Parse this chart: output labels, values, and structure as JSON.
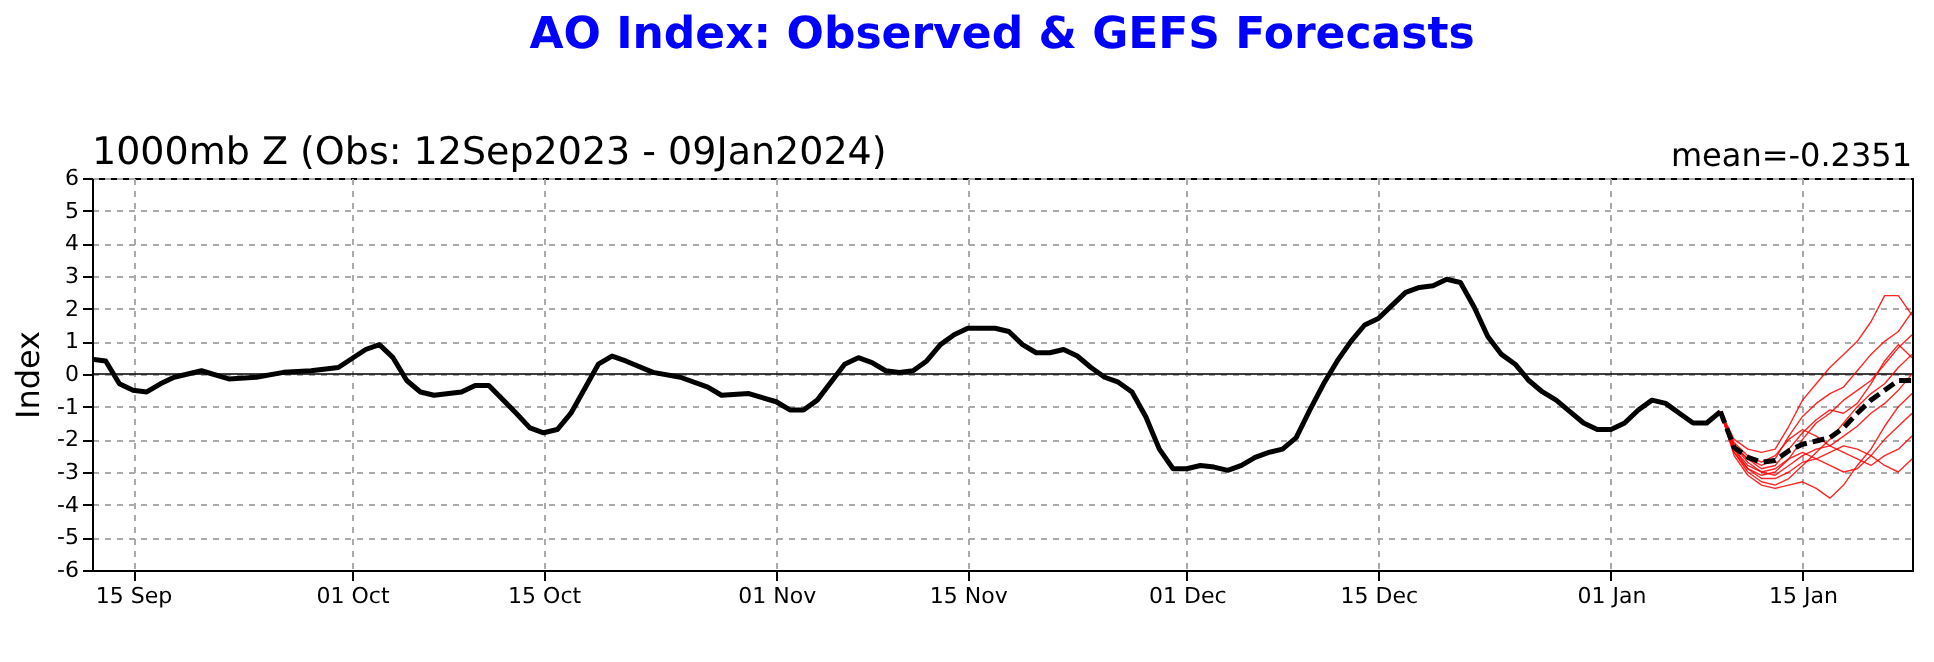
{
  "chart_data": {
    "type": "line",
    "title": "AO Index: Observed & GEFS Forecasts",
    "subtitle": "1000mb Z (Obs: 12Sep2023 - 09Jan2024)",
    "ylabel": "Index",
    "annotations": [
      "mean=-0.2351"
    ],
    "xlim": [
      "2023-09-12",
      "2024-01-23"
    ],
    "xticks": [
      {
        "value": "2023-09-15",
        "label": "15 Sep"
      },
      {
        "value": "2023-10-01",
        "label": "01 Oct"
      },
      {
        "value": "2023-10-15",
        "label": "15 Oct"
      },
      {
        "value": "2023-11-01",
        "label": "01 Nov"
      },
      {
        "value": "2023-11-15",
        "label": "15 Nov"
      },
      {
        "value": "2023-12-01",
        "label": "01 Dec"
      },
      {
        "value": "2023-12-15",
        "label": "15 Dec"
      },
      {
        "value": "2024-01-01",
        "label": "01 Jan"
      },
      {
        "value": "2024-01-15",
        "label": "15 Jan"
      }
    ],
    "ylim": [
      -6,
      6
    ],
    "yticks": [
      -6,
      -5,
      -4,
      -3,
      -2,
      -1,
      0,
      1,
      2,
      3,
      4,
      5,
      6
    ],
    "grid": true,
    "marker": "none",
    "ref_lines": [
      {
        "axis": "y",
        "value": 0,
        "color": "#000000",
        "line_style": "solid"
      }
    ],
    "series": [
      {
        "color": "#000000",
        "line_style": "solid",
        "x": [
          "2023-09-12",
          "2023-09-13",
          "2023-09-14",
          "2023-09-15",
          "2023-09-16",
          "2023-09-17",
          "2023-09-18",
          "2023-09-20",
          "2023-09-22",
          "2023-09-24",
          "2023-09-26",
          "2023-09-28",
          "2023-09-30",
          "2023-10-02",
          "2023-10-03",
          "2023-10-04",
          "2023-10-05",
          "2023-10-06",
          "2023-10-07",
          "2023-10-09",
          "2023-10-10",
          "2023-10-11",
          "2023-10-13",
          "2023-10-14",
          "2023-10-15",
          "2023-10-16",
          "2023-10-17",
          "2023-10-19",
          "2023-10-20",
          "2023-10-21",
          "2023-10-23",
          "2023-10-25",
          "2023-10-27",
          "2023-10-28",
          "2023-10-30",
          "2023-11-01",
          "2023-11-02",
          "2023-11-03",
          "2023-11-04",
          "2023-11-06",
          "2023-11-07",
          "2023-11-08",
          "2023-11-09",
          "2023-11-10",
          "2023-11-11",
          "2023-11-12",
          "2023-11-13",
          "2023-11-14",
          "2023-11-15",
          "2023-11-17",
          "2023-11-18",
          "2023-11-19",
          "2023-11-20",
          "2023-11-21",
          "2023-11-22",
          "2023-11-23",
          "2023-11-24",
          "2023-11-25",
          "2023-11-26",
          "2023-11-27",
          "2023-11-28",
          "2023-11-29",
          "2023-11-30",
          "2023-12-01",
          "2023-12-02",
          "2023-12-03",
          "2023-12-04",
          "2023-12-05",
          "2023-12-06",
          "2023-12-07",
          "2023-12-08",
          "2023-12-09",
          "2023-12-10",
          "2023-12-11",
          "2023-12-12",
          "2023-12-13",
          "2023-12-14",
          "2023-12-15",
          "2023-12-16",
          "2023-12-17",
          "2023-12-18",
          "2023-12-19",
          "2023-12-20",
          "2023-12-21",
          "2023-12-22",
          "2023-12-23",
          "2023-12-24",
          "2023-12-25",
          "2023-12-26",
          "2023-12-27",
          "2023-12-28",
          "2023-12-29",
          "2023-12-30",
          "2023-12-31",
          "2024-01-01",
          "2024-01-02",
          "2024-01-03",
          "2024-01-04",
          "2024-01-05",
          "2024-01-06",
          "2024-01-07",
          "2024-01-08",
          "2024-01-09"
        ],
        "values": [
          0.45,
          0.4,
          -0.3,
          -0.5,
          -0.55,
          -0.3,
          -0.1,
          0.1,
          -0.15,
          -0.1,
          0.05,
          0.1,
          0.2,
          0.75,
          0.9,
          0.5,
          -0.2,
          -0.55,
          -0.65,
          -0.55,
          -0.35,
          -0.35,
          -1.2,
          -1.65,
          -1.8,
          -1.7,
          -1.2,
          0.3,
          0.55,
          0.4,
          0.05,
          -0.1,
          -0.4,
          -0.65,
          -0.6,
          -0.85,
          -1.1,
          -1.1,
          -0.8,
          0.3,
          0.5,
          0.35,
          0.1,
          0.05,
          0.1,
          0.4,
          0.9,
          1.2,
          1.4,
          1.4,
          1.3,
          0.9,
          0.65,
          0.65,
          0.75,
          0.55,
          0.2,
          -0.1,
          -0.25,
          -0.55,
          -1.3,
          -2.3,
          -2.9,
          -2.9,
          -2.8,
          -2.85,
          -2.95,
          -2.8,
          -2.55,
          -2.4,
          -2.3,
          -1.95,
          -1.1,
          -0.3,
          0.4,
          1.0,
          1.5,
          1.7,
          2.1,
          2.5,
          2.65,
          2.7,
          2.9,
          2.8,
          2.05,
          1.15,
          0.6,
          0.3,
          -0.2,
          -0.55,
          -0.8,
          -1.15,
          -1.5,
          -1.7,
          -1.7,
          -1.5,
          -1.1,
          -0.8,
          -0.9,
          -1.2,
          -1.5,
          -1.5,
          -1.15
        ]
      },
      {
        "color": "#ff0000",
        "x": [
          "2024-01-09",
          "2024-01-10",
          "2024-01-11",
          "2024-01-12",
          "2024-01-13",
          "2024-01-14",
          "2024-01-15",
          "2024-01-16",
          "2024-01-17",
          "2024-01-18",
          "2024-01-19",
          "2024-01-20",
          "2024-01-21",
          "2024-01-22",
          "2024-01-23"
        ],
        "values": [
          -1.15,
          -2.0,
          -2.3,
          -2.4,
          -2.3,
          -1.6,
          -0.8,
          -0.3,
          0.2,
          0.6,
          1.0,
          1.6,
          2.4,
          2.4,
          1.8
        ]
      },
      {
        "color": "#ff0000",
        "x": [
          "2024-01-09",
          "2024-01-10",
          "2024-01-11",
          "2024-01-12",
          "2024-01-13",
          "2024-01-14",
          "2024-01-15",
          "2024-01-16",
          "2024-01-17",
          "2024-01-18",
          "2024-01-19",
          "2024-01-20",
          "2024-01-21",
          "2024-01-22",
          "2024-01-23"
        ],
        "values": [
          -1.15,
          -2.2,
          -2.6,
          -2.8,
          -2.6,
          -1.9,
          -1.3,
          -0.9,
          -0.6,
          -0.4,
          0.1,
          0.6,
          1.0,
          1.3,
          1.9
        ]
      },
      {
        "color": "#ff0000",
        "x": [
          "2024-01-09",
          "2024-01-10",
          "2024-01-11",
          "2024-01-12",
          "2024-01-13",
          "2024-01-14",
          "2024-01-15",
          "2024-01-16",
          "2024-01-17",
          "2024-01-18",
          "2024-01-19",
          "2024-01-20",
          "2024-01-21",
          "2024-01-22",
          "2024-01-23"
        ],
        "values": [
          -1.15,
          -2.3,
          -2.9,
          -3.1,
          -3.0,
          -2.6,
          -2.0,
          -1.5,
          -1.2,
          -0.8,
          -0.5,
          -0.2,
          0.3,
          0.8,
          1.2
        ]
      },
      {
        "color": "#ff0000",
        "x": [
          "2024-01-09",
          "2024-01-10",
          "2024-01-11",
          "2024-01-12",
          "2024-01-13",
          "2024-01-14",
          "2024-01-15",
          "2024-01-16",
          "2024-01-17",
          "2024-01-18",
          "2024-01-19",
          "2024-01-20",
          "2024-01-21",
          "2024-01-22",
          "2024-01-23"
        ],
        "values": [
          -1.15,
          -2.4,
          -3.0,
          -3.3,
          -3.4,
          -3.2,
          -2.8,
          -2.4,
          -2.0,
          -1.5,
          -1.0,
          -0.6,
          -0.3,
          0.2,
          0.6
        ]
      },
      {
        "color": "#ff0000",
        "x": [
          "2024-01-09",
          "2024-01-10",
          "2024-01-11",
          "2024-01-12",
          "2024-01-13",
          "2024-01-14",
          "2024-01-15",
          "2024-01-16",
          "2024-01-17",
          "2024-01-18",
          "2024-01-19",
          "2024-01-20",
          "2024-01-21",
          "2024-01-22",
          "2024-01-23"
        ],
        "values": [
          -1.15,
          -2.2,
          -2.7,
          -3.0,
          -3.1,
          -2.8,
          -2.5,
          -2.3,
          -2.2,
          -1.9,
          -1.6,
          -1.2,
          -0.9,
          -0.5,
          0.0
        ]
      },
      {
        "color": "#ff0000",
        "x": [
          "2024-01-09",
          "2024-01-10",
          "2024-01-11",
          "2024-01-12",
          "2024-01-13",
          "2024-01-14",
          "2024-01-15",
          "2024-01-16",
          "2024-01-17",
          "2024-01-18",
          "2024-01-19",
          "2024-01-20",
          "2024-01-21",
          "2024-01-22",
          "2024-01-23"
        ],
        "values": [
          -1.15,
          -2.5,
          -3.1,
          -3.4,
          -3.5,
          -3.4,
          -3.3,
          -3.5,
          -3.8,
          -3.4,
          -2.8,
          -2.3,
          -1.6,
          -1.0,
          -0.6
        ]
      },
      {
        "color": "#ff0000",
        "x": [
          "2024-01-09",
          "2024-01-10",
          "2024-01-11",
          "2024-01-12",
          "2024-01-13",
          "2024-01-14",
          "2024-01-15",
          "2024-01-16",
          "2024-01-17",
          "2024-01-18",
          "2024-01-19",
          "2024-01-20",
          "2024-01-21",
          "2024-01-22",
          "2024-01-23"
        ],
        "values": [
          -1.15,
          -2.3,
          -2.8,
          -3.0,
          -2.9,
          -2.6,
          -2.4,
          -2.6,
          -2.8,
          -3.0,
          -2.9,
          -2.5,
          -2.0,
          -1.6,
          -1.2
        ]
      },
      {
        "color": "#ff0000",
        "x": [
          "2024-01-09",
          "2024-01-10",
          "2024-01-11",
          "2024-01-12",
          "2024-01-13",
          "2024-01-14",
          "2024-01-15",
          "2024-01-16",
          "2024-01-17",
          "2024-01-18",
          "2024-01-19",
          "2024-01-20",
          "2024-01-21",
          "2024-01-22",
          "2024-01-23"
        ],
        "values": [
          -1.15,
          -2.1,
          -2.5,
          -2.7,
          -2.5,
          -2.0,
          -1.7,
          -1.9,
          -2.2,
          -2.4,
          -2.6,
          -2.8,
          -2.5,
          -2.3,
          -1.9
        ]
      },
      {
        "color": "#ff0000",
        "x": [
          "2024-01-09",
          "2024-01-10",
          "2024-01-11",
          "2024-01-12",
          "2024-01-13",
          "2024-01-14",
          "2024-01-15",
          "2024-01-16",
          "2024-01-17",
          "2024-01-18",
          "2024-01-19",
          "2024-01-20",
          "2024-01-21",
          "2024-01-22",
          "2024-01-23"
        ],
        "values": [
          -1.15,
          -2.4,
          -2.9,
          -3.2,
          -3.2,
          -3.0,
          -2.7,
          -2.6,
          -2.4,
          -2.2,
          -2.3,
          -2.5,
          -2.8,
          -3.0,
          -2.6
        ]
      },
      {
        "color": "#ff0000",
        "x": [
          "2024-01-09",
          "2024-01-10",
          "2024-01-11",
          "2024-01-12",
          "2024-01-13",
          "2024-01-14",
          "2024-01-15",
          "2024-01-16",
          "2024-01-17",
          "2024-01-18",
          "2024-01-19",
          "2024-01-20",
          "2024-01-21",
          "2024-01-22",
          "2024-01-23"
        ],
        "values": [
          -1.15,
          -2.2,
          -2.6,
          -2.9,
          -2.8,
          -2.3,
          -1.8,
          -1.4,
          -1.1,
          -1.2,
          -0.9,
          -0.3,
          0.4,
          0.9,
          0.5
        ]
      },
      {
        "color": "#000000",
        "line_style": "dashed",
        "x": [
          "2024-01-09",
          "2024-01-10",
          "2024-01-11",
          "2024-01-12",
          "2024-01-13",
          "2024-01-14",
          "2024-01-15",
          "2024-01-16",
          "2024-01-17",
          "2024-01-18",
          "2024-01-19",
          "2024-01-20",
          "2024-01-21",
          "2024-01-22",
          "2024-01-23"
        ],
        "values": [
          -1.15,
          -2.25,
          -2.55,
          -2.7,
          -2.65,
          -2.35,
          -2.15,
          -2.05,
          -1.95,
          -1.65,
          -1.2,
          -0.8,
          -0.5,
          -0.2,
          -0.2
        ]
      }
    ]
  }
}
